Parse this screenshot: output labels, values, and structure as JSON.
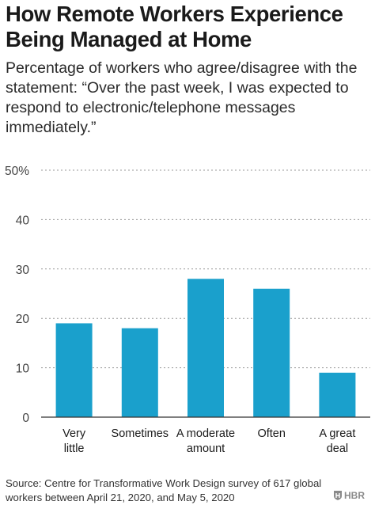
{
  "title_lines": [
    "How Remote Workers Experience",
    "Being Managed at Home"
  ],
  "subtitle": "Percentage of workers who agree/disagree with the statement: “Over the past week, I was expected to respond to electronic/telephone messages immediately.”",
  "source": "Source: Centre for Transformative Work Design survey of 617 global workers between April 21, 2020, and May 5, 2020",
  "logo": {
    "text": "HBR",
    "icon": "hbr-shield-icon"
  },
  "colors": {
    "bar": "#1aa0cc",
    "grid": "#9a9a9a",
    "axis": "#333333",
    "text": "#1a1a1a"
  },
  "chart_data": {
    "type": "bar",
    "categories": [
      [
        "Very",
        "little"
      ],
      [
        "Sometimes"
      ],
      [
        "A moderate",
        "amount"
      ],
      [
        "Often"
      ],
      [
        "A great",
        "deal"
      ]
    ],
    "values": [
      19,
      18,
      28,
      26,
      9
    ],
    "ylim": [
      0,
      50
    ],
    "yticks": [
      0,
      10,
      20,
      30,
      40,
      50
    ],
    "ytick_labels": [
      "0",
      "10",
      "20",
      "30",
      "40",
      "50%"
    ],
    "grid": true,
    "grid_style": "dashed",
    "xlabel": "",
    "ylabel": ""
  }
}
